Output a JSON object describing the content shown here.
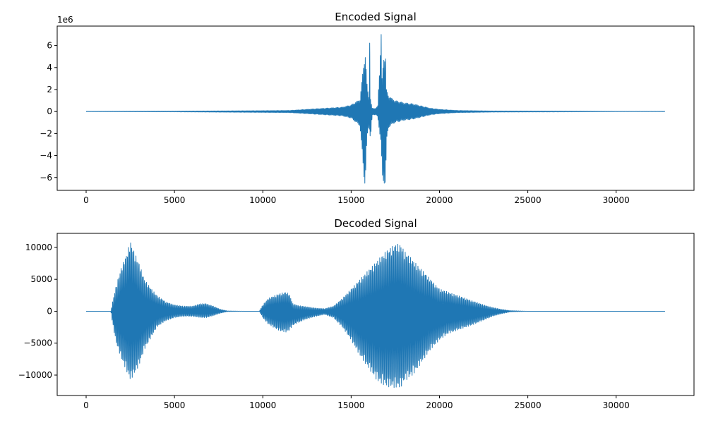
{
  "chart_data": [
    {
      "type": "line",
      "title": "Encoded Signal",
      "xlabel": "",
      "ylabel": "",
      "offset_text": "1e6",
      "grid": false,
      "xlim": [
        -1638,
        34406
      ],
      "ylim": [
        -7.17,
        7.77
      ],
      "x_ticks": [
        0,
        5000,
        10000,
        15000,
        20000,
        25000,
        30000
      ],
      "x_tick_labels": [
        "0",
        "5000",
        "10000",
        "15000",
        "20000",
        "25000",
        "30000"
      ],
      "y_ticks": [
        -6,
        -4,
        -2,
        0,
        2,
        4,
        6
      ],
      "y_tick_labels": [
        "−6",
        "−4",
        "−2",
        "0",
        "2",
        "4",
        "6"
      ],
      "series": [
        {
          "color": "#1f77b4",
          "envelope": {
            "x": [
              0,
              5000,
              7000,
              10000,
              11500,
              12500,
              13500,
              14500,
              15000,
              15500,
              15750,
              15800,
              15900,
              16000,
              16050,
              16100,
              16200,
              16400,
              16500,
              16700,
              16750,
              16850,
              16950,
              17000,
              17100,
              17300,
              17500,
              18000,
              18500,
              19000,
              19500,
              20000,
              21000,
              23000,
              25000,
              27500,
              30000,
              32767
            ],
            "max": [
              0.01,
              0.03,
              0.05,
              0.08,
              0.1,
              0.2,
              0.3,
              0.4,
              0.6,
              1.1,
              5.0,
              5.3,
              2.5,
              1.2,
              7.1,
              1.0,
              0.3,
              0.3,
              0.5,
              7.1,
              3.0,
              5.2,
              5.0,
              2.0,
              1.5,
              1.2,
              1.0,
              0.8,
              0.7,
              0.5,
              0.3,
              0.2,
              0.1,
              0.05,
              0.04,
              0.03,
              0.01,
              0.01
            ],
            "min": [
              -0.01,
              -0.03,
              -0.05,
              -0.08,
              -0.1,
              -0.2,
              -0.3,
              -0.4,
              -0.6,
              -1.3,
              -6.5,
              -6.6,
              -2.5,
              -1.2,
              -2.0,
              -2.5,
              -0.3,
              -0.3,
              -0.5,
              -3.0,
              -6.3,
              -6.5,
              -6.6,
              -3.0,
              -1.5,
              -1.2,
              -1.0,
              -0.8,
              -0.7,
              -0.5,
              -0.3,
              -0.2,
              -0.1,
              -0.05,
              -0.04,
              -0.03,
              -0.01,
              -0.01
            ]
          }
        }
      ]
    },
    {
      "type": "line",
      "title": "Decoded Signal",
      "xlabel": "",
      "ylabel": "",
      "grid": false,
      "xlim": [
        -1638,
        34406
      ],
      "ylim": [
        -13200,
        12200
      ],
      "x_ticks": [
        0,
        5000,
        10000,
        15000,
        20000,
        25000,
        30000
      ],
      "x_tick_labels": [
        "0",
        "5000",
        "10000",
        "15000",
        "20000",
        "25000",
        "30000"
      ],
      "y_ticks": [
        -10000,
        -5000,
        0,
        5000,
        10000
      ],
      "y_tick_labels": [
        "−10000",
        "−5000",
        "0",
        "5000",
        "10000"
      ],
      "series": [
        {
          "color": "#1f77b4",
          "envelope": {
            "x": [
              0,
              1400,
              1500,
              1700,
              2000,
              2300,
              2500,
              2700,
              3000,
              3300,
              3700,
              4000,
              4500,
              5000,
              5500,
              6000,
              6500,
              6800,
              7200,
              7600,
              8000,
              9000,
              9800,
              10000,
              10300,
              10700,
              11000,
              11300,
              11500,
              11700,
              12000,
              12500,
              13000,
              13500,
              14000,
              14500,
              15000,
              15500,
              16000,
              16500,
              17000,
              17500,
              17800,
              18000,
              18500,
              19000,
              19500,
              20000,
              20500,
              21000,
              21500,
              22000,
              22500,
              23000,
              23500,
              24000,
              25000,
              32767
            ],
            "max": [
              0,
              0,
              1500,
              4000,
              7000,
              9000,
              11000,
              9500,
              7500,
              5000,
              3500,
              2500,
              1500,
              1000,
              800,
              800,
              1200,
              1200,
              800,
              300,
              50,
              0,
              0,
              1000,
              2000,
              2500,
              2800,
              3000,
              2700,
              1200,
              900,
              700,
              500,
              400,
              800,
              2000,
              3500,
              5000,
              6500,
              8000,
              9500,
              10500,
              10500,
              9500,
              8000,
              6500,
              5000,
              3500,
              3000,
              2500,
              2000,
              1500,
              1000,
              600,
              300,
              100,
              0,
              0
            ],
            "min": [
              0,
              0,
              -2000,
              -5000,
              -7500,
              -9500,
              -10800,
              -10000,
              -8500,
              -6000,
              -4000,
              -2500,
              -1500,
              -1000,
              -800,
              -800,
              -1000,
              -1000,
              -700,
              -300,
              -50,
              0,
              0,
              -1000,
              -2000,
              -2700,
              -3100,
              -3300,
              -3000,
              -2200,
              -1800,
              -1200,
              -800,
              -500,
              -1000,
              -2500,
              -4500,
              -7000,
              -9000,
              -11000,
              -11800,
              -12000,
              -12000,
              -11000,
              -10000,
              -8000,
              -6000,
              -4500,
              -3500,
              -3000,
              -2500,
              -2000,
              -1400,
              -800,
              -400,
              -100,
              0,
              0
            ]
          }
        }
      ]
    }
  ]
}
